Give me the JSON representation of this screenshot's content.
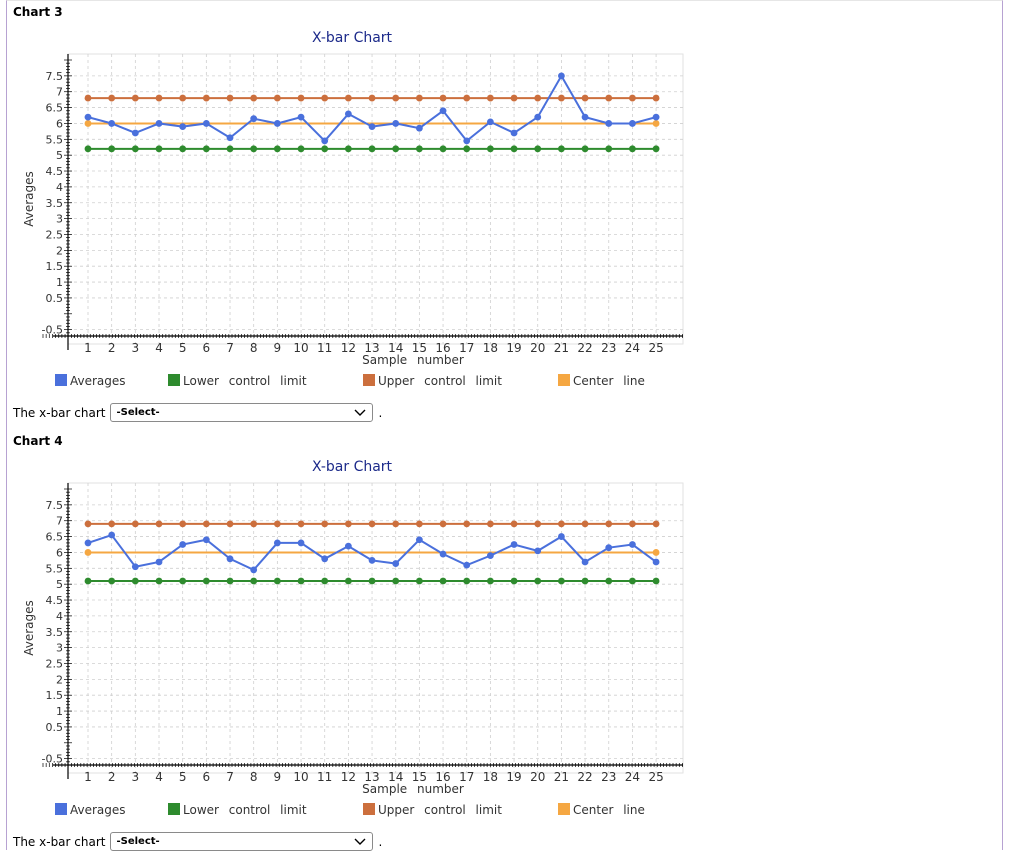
{
  "charts": [
    {
      "section_label": "Chart 3",
      "question_prefix": "The x-bar chart",
      "select_value": "-Select-",
      "question_suffix": ".",
      "chart_data": {
        "type": "line",
        "title": "X-bar Chart",
        "xlabel": "Sample number",
        "ylabel": "Averages",
        "x": [
          1,
          2,
          3,
          4,
          5,
          6,
          7,
          8,
          9,
          10,
          11,
          12,
          13,
          14,
          15,
          16,
          17,
          18,
          19,
          20,
          21,
          22,
          23,
          24,
          25
        ],
        "y_ticks": [
          "-0.5",
          "0.5",
          "1",
          "1.5",
          "2",
          "2.5",
          "3",
          "3.5",
          "4",
          "4.5",
          "5",
          "5.5",
          "6",
          "6.5",
          "7",
          "7.5"
        ],
        "ylim": [
          -0.7,
          8.0
        ],
        "grid": true,
        "legend_position": "bottom",
        "series": [
          {
            "name": "Averages",
            "color": "#4a70dc",
            "values": [
              6.2,
              6.0,
              5.7,
              6.0,
              5.9,
              6.0,
              5.55,
              6.15,
              6.0,
              6.2,
              5.45,
              6.3,
              5.9,
              6.0,
              5.85,
              6.4,
              5.45,
              6.05,
              5.7,
              6.2,
              7.5,
              6.2,
              6.0,
              6.0,
              6.2
            ]
          },
          {
            "name": "Lower control limit",
            "color": "#2e8b2e",
            "values": [
              5.2,
              5.2,
              5.2,
              5.2,
              5.2,
              5.2,
              5.2,
              5.2,
              5.2,
              5.2,
              5.2,
              5.2,
              5.2,
              5.2,
              5.2,
              5.2,
              5.2,
              5.2,
              5.2,
              5.2,
              5.2,
              5.2,
              5.2,
              5.2,
              5.2
            ]
          },
          {
            "name": "Upper control limit",
            "color": "#cc6f3d",
            "values": [
              6.8,
              6.8,
              6.8,
              6.8,
              6.8,
              6.8,
              6.8,
              6.8,
              6.8,
              6.8,
              6.8,
              6.8,
              6.8,
              6.8,
              6.8,
              6.8,
              6.8,
              6.8,
              6.8,
              6.8,
              6.8,
              6.8,
              6.8,
              6.8,
              6.8
            ]
          },
          {
            "name": "Center line",
            "color": "#f5a742",
            "values": [
              6.0,
              6.0,
              6.0,
              6.0,
              6.0,
              6.0,
              6.0,
              6.0,
              6.0,
              6.0,
              6.0,
              6.0,
              6.0,
              6.0,
              6.0,
              6.0,
              6.0,
              6.0,
              6.0,
              6.0,
              6.0,
              6.0,
              6.0,
              6.0,
              6.0
            ]
          }
        ]
      }
    },
    {
      "section_label": "Chart 4",
      "question_prefix": "The x-bar chart",
      "select_value": "-Select-",
      "question_suffix": ".",
      "chart_data": {
        "type": "line",
        "title": "X-bar Chart",
        "xlabel": "Sample number",
        "ylabel": "Averages",
        "x": [
          1,
          2,
          3,
          4,
          5,
          6,
          7,
          8,
          9,
          10,
          11,
          12,
          13,
          14,
          15,
          16,
          17,
          18,
          19,
          20,
          21,
          22,
          23,
          24,
          25
        ],
        "y_ticks": [
          "-0.5",
          "0.5",
          "1",
          "1.5",
          "2",
          "2.5",
          "3",
          "3.5",
          "4",
          "4.5",
          "5",
          "5.5",
          "6",
          "6.5",
          "7",
          "7.5"
        ],
        "ylim": [
          -0.7,
          8.0
        ],
        "grid": true,
        "legend_position": "bottom",
        "series": [
          {
            "name": "Averages",
            "color": "#4a70dc",
            "values": [
              6.3,
              6.55,
              5.55,
              5.7,
              6.25,
              6.4,
              5.8,
              5.45,
              6.3,
              6.3,
              5.8,
              6.2,
              5.75,
              5.65,
              6.4,
              5.95,
              5.6,
              5.9,
              6.25,
              6.05,
              6.5,
              5.7,
              6.15,
              6.25,
              5.7
            ]
          },
          {
            "name": "Lower control limit",
            "color": "#2e8b2e",
            "values": [
              5.1,
              5.1,
              5.1,
              5.1,
              5.1,
              5.1,
              5.1,
              5.1,
              5.1,
              5.1,
              5.1,
              5.1,
              5.1,
              5.1,
              5.1,
              5.1,
              5.1,
              5.1,
              5.1,
              5.1,
              5.1,
              5.1,
              5.1,
              5.1,
              5.1
            ]
          },
          {
            "name": "Upper control limit",
            "color": "#cc6f3d",
            "values": [
              6.9,
              6.9,
              6.9,
              6.9,
              6.9,
              6.9,
              6.9,
              6.9,
              6.9,
              6.9,
              6.9,
              6.9,
              6.9,
              6.9,
              6.9,
              6.9,
              6.9,
              6.9,
              6.9,
              6.9,
              6.9,
              6.9,
              6.9,
              6.9,
              6.9
            ]
          },
          {
            "name": "Center line",
            "color": "#f5a742",
            "values": [
              6.0,
              6.0,
              6.0,
              6.0,
              6.0,
              6.0,
              6.0,
              6.0,
              6.0,
              6.0,
              6.0,
              6.0,
              6.0,
              6.0,
              6.0,
              6.0,
              6.0,
              6.0,
              6.0,
              6.0,
              6.0,
              6.0,
              6.0,
              6.0,
              6.0
            ]
          }
        ]
      }
    }
  ]
}
